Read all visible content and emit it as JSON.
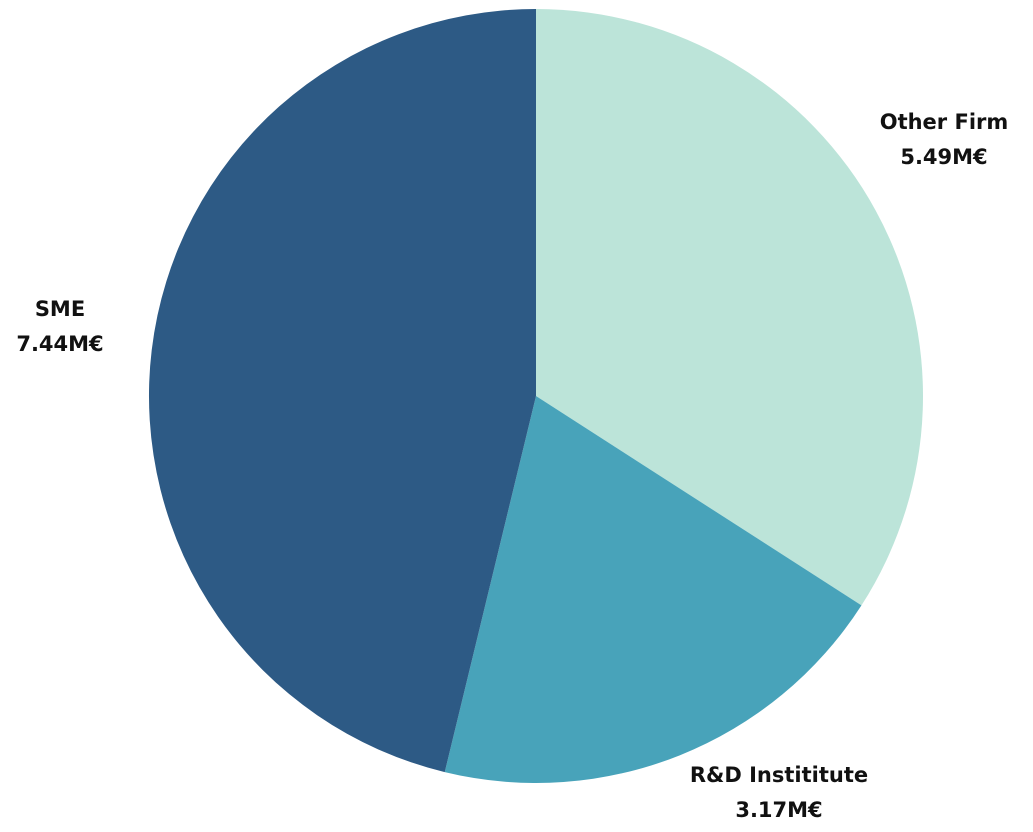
{
  "chart_data": {
    "type": "pie",
    "categories": [
      "Other Firm",
      "R&D Instititute",
      "SME"
    ],
    "values": [
      5.49,
      3.17,
      7.44
    ],
    "value_labels": [
      "5.49M€",
      "3.17M€",
      "7.44M€"
    ],
    "colors": [
      "#bce4d9",
      "#48a3ba",
      "#2d5a85"
    ],
    "title": "",
    "legend": "none"
  }
}
